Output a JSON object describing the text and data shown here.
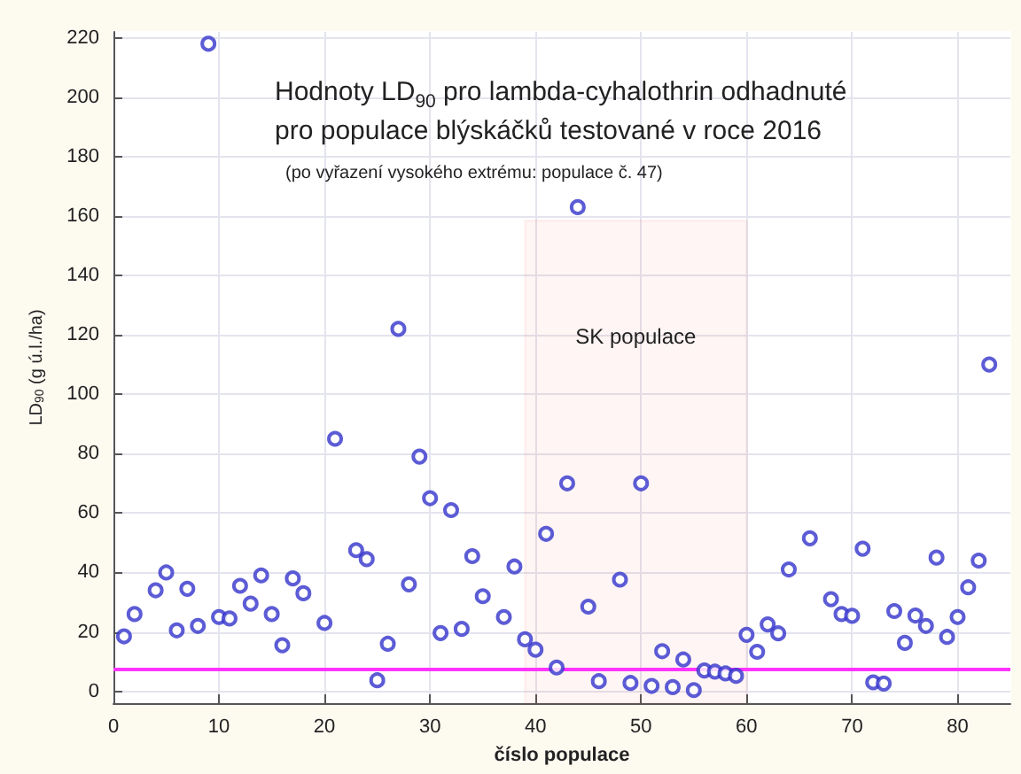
{
  "chart_data": {
    "type": "scatter",
    "title": "Hodnoty LD$_{90}$ pro lambda-cyhalothrin odhadnuté\npro populace blýskáčků testované v roce 2016",
    "subtitle": "(po vyřazení vysokého extrému: populace č. 47)",
    "xlabel": "číslo populace",
    "ylabel": "LD$_{90}$ (g ú.l./ha)",
    "series": [
      {
        "color": "#3333cc",
        "x": [
          1,
          2,
          4,
          5,
          6,
          7,
          8,
          9,
          10,
          11,
          12,
          13,
          14,
          15,
          16,
          17,
          18,
          20,
          21,
          23,
          24,
          25,
          26,
          27,
          28,
          29,
          30,
          31,
          32,
          33,
          34,
          35,
          37,
          38,
          39,
          40,
          41,
          42,
          43,
          44,
          45,
          46,
          48,
          49,
          50,
          51,
          52,
          53,
          54,
          55,
          56,
          57,
          58,
          59,
          60,
          61,
          62,
          63,
          64,
          66,
          68,
          69,
          70,
          71,
          72,
          73,
          74,
          75,
          76,
          77,
          78,
          79,
          80,
          81,
          82,
          83
        ],
        "values": [
          18.5,
          26,
          34,
          40,
          20.5,
          34.5,
          22,
          218,
          25,
          24.5,
          35.5,
          29.5,
          39,
          26,
          15.5,
          38,
          33,
          23,
          85,
          47.5,
          44.5,
          3.7,
          16,
          122,
          36,
          79,
          65,
          19.6,
          61,
          21,
          45.5,
          32,
          25,
          42,
          17.5,
          14,
          53,
          8,
          70,
          163,
          28.5,
          3.4,
          37.6,
          2.8,
          70,
          1.8,
          13.5,
          1.4,
          10.7,
          0.4,
          7,
          6.6,
          6,
          5.2,
          19,
          13.3,
          22.5,
          19.5,
          41,
          51.5,
          31,
          26,
          25.4,
          48,
          3,
          2.6,
          27,
          16.3,
          25.5,
          22,
          45,
          18.3,
          25,
          35,
          44,
          110
        ]
      }
    ],
    "xlim": [
      0,
      85
    ],
    "xticks": [
      0,
      10,
      20,
      30,
      40,
      50,
      60,
      70,
      80
    ],
    "ylim": [
      -4,
      222
    ],
    "yticks": [
      0,
      20,
      40,
      60,
      80,
      100,
      120,
      140,
      160,
      180,
      200,
      220
    ],
    "ref_lines": [
      {
        "axis": "y",
        "value": 7.3,
        "color": "#ff33ff"
      }
    ],
    "bands": [
      {
        "axis": "x",
        "from": 39,
        "to": 60,
        "label": "SK populace",
        "color": "#e8392f"
      }
    ],
    "grid": true,
    "marker": "circle"
  }
}
